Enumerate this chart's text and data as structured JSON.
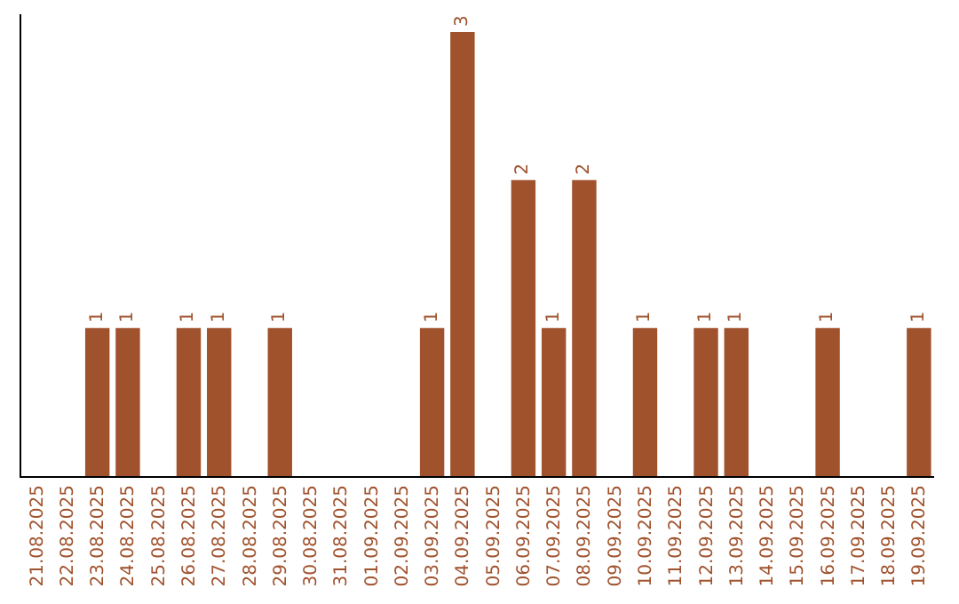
{
  "chart_data": {
    "type": "bar",
    "categories": [
      "21.08.2025",
      "22.08.2025",
      "23.08.2025",
      "24.08.2025",
      "25.08.2025",
      "26.08.2025",
      "27.08.2025",
      "28.08.2025",
      "29.08.2025",
      "30.08.2025",
      "31.08.2025",
      "01.09.2025",
      "02.09.2025",
      "03.09.2025",
      "04.09.2025",
      "05.09.2025",
      "06.09.2025",
      "07.09.2025",
      "08.09.2025",
      "09.09.2025",
      "10.09.2025",
      "11.09.2025",
      "12.09.2025",
      "13.09.2025",
      "14.09.2025",
      "15.09.2025",
      "16.09.2025",
      "17.09.2025",
      "18.09.2025",
      "19.09.2025"
    ],
    "values": [
      0,
      0,
      1,
      1,
      0,
      1,
      1,
      0,
      1,
      0,
      0,
      0,
      0,
      1,
      3,
      0,
      2,
      1,
      2,
      0,
      1,
      0,
      1,
      1,
      0,
      0,
      1,
      0,
      0,
      1
    ],
    "value_labels": [
      null,
      null,
      "1",
      "1",
      null,
      "1",
      "1",
      null,
      "1",
      null,
      null,
      null,
      null,
      "1",
      "3",
      null,
      "2",
      "1",
      "2",
      null,
      "1",
      null,
      "1",
      "1",
      null,
      null,
      "1",
      null,
      null,
      "1"
    ],
    "color": "#a0522d"
  }
}
